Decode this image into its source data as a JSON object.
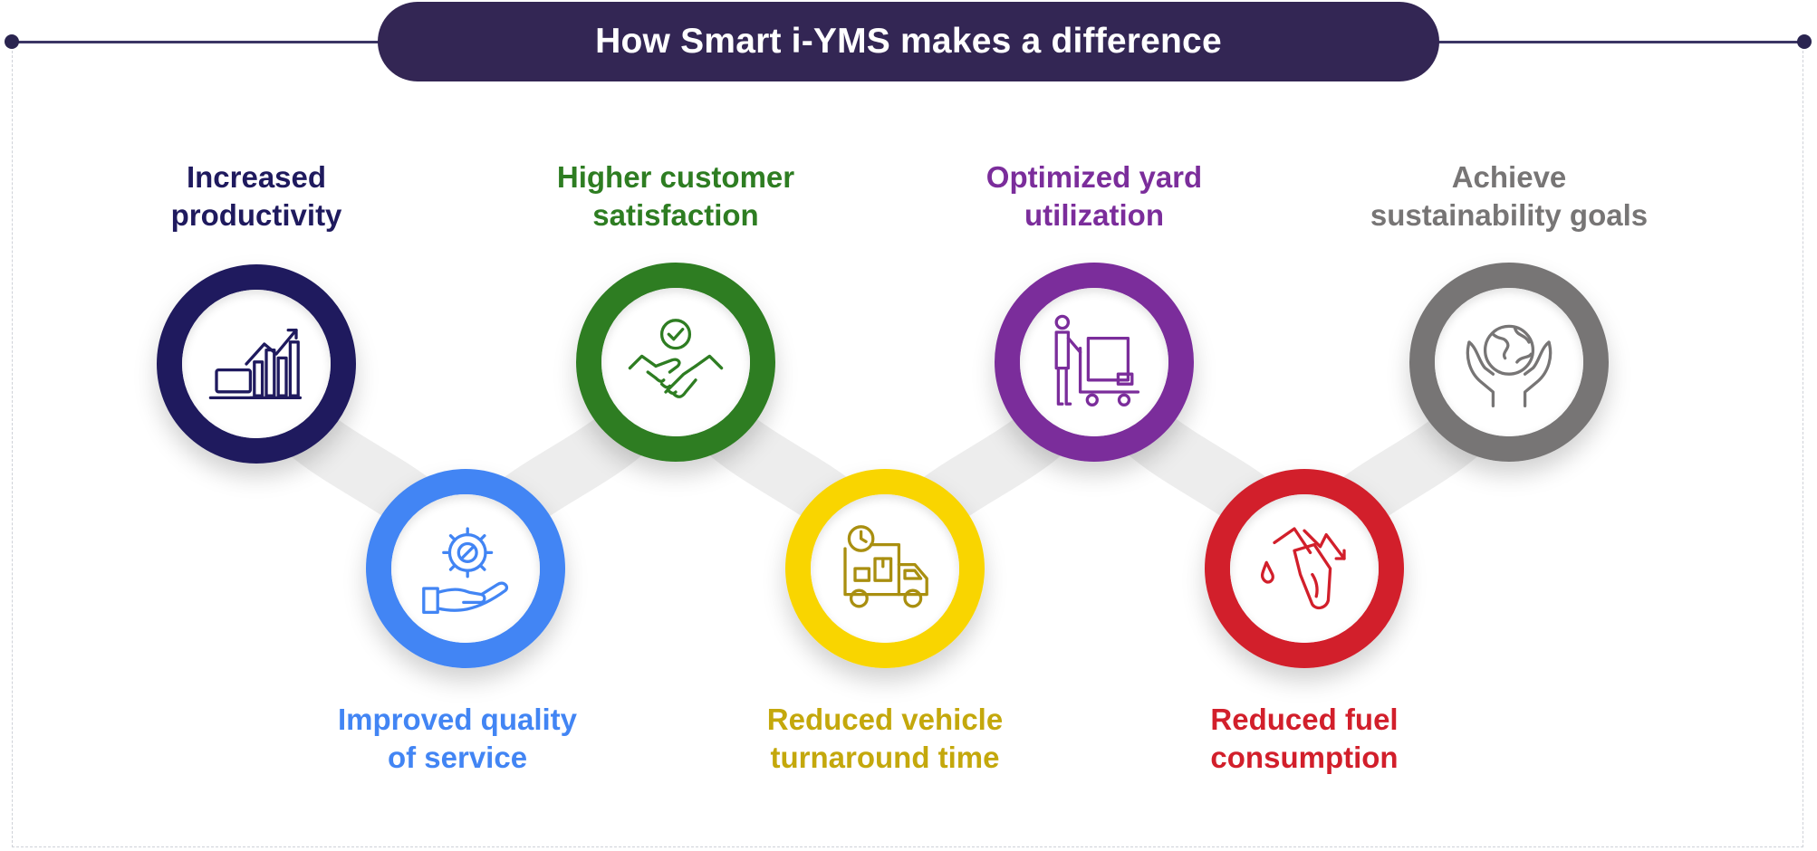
{
  "title": "How Smart i-YMS makes a difference",
  "items": [
    {
      "line1": "Increased",
      "line2": "productivity",
      "color": "#1f1a5e",
      "icon": "chart-laptop-icon"
    },
    {
      "line1": "Improved quality",
      "line2": "of service",
      "color": "#4285f4",
      "icon": "gear-hand-icon"
    },
    {
      "line1": "Higher customer",
      "line2": "satisfaction",
      "color": "#2e7d22",
      "icon": "handshake-check-icon"
    },
    {
      "line1": "Reduced vehicle",
      "line2": "turnaround time",
      "color": "#f9d500",
      "text_color": "#c4a80c",
      "icon": "delivery-truck-clock-icon"
    },
    {
      "line1": "Optimized yard",
      "line2": "utilization",
      "color": "#7b2d9b",
      "icon": "person-trolley-icon"
    },
    {
      "line1": "Reduced fuel",
      "line2": "consumption",
      "color": "#d21f2b",
      "icon": "fuel-nozzle-down-icon"
    },
    {
      "line1": "Achieve",
      "line2": "sustainability goals",
      "color": "#777575",
      "icon": "hands-globe-icon"
    }
  ]
}
